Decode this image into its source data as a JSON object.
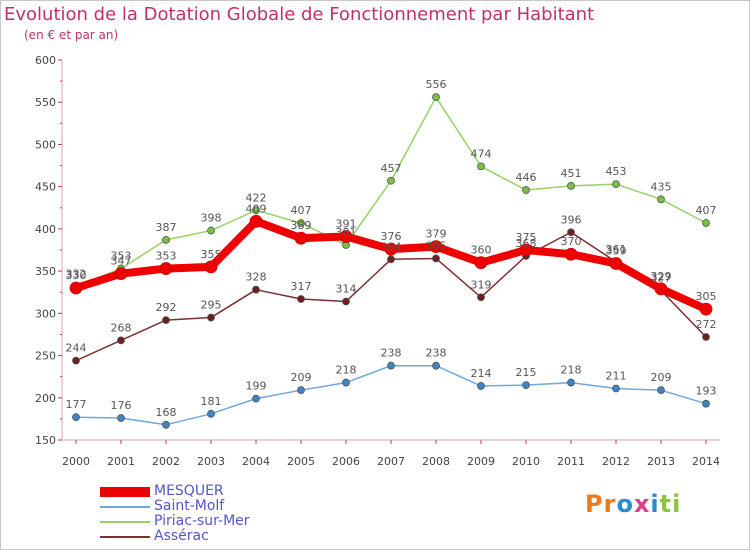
{
  "title": "Evolution de la Dotation Globale de Fonctionnement par Habitant",
  "subtitle": "(en € et par an)",
  "logo": {
    "letters": [
      "P",
      "r",
      "o",
      "x",
      "i",
      "t",
      "i"
    ],
    "colors": [
      "#f07a1a",
      "#f07a1a",
      "#2a8ad4",
      "#e03b8a",
      "#2a8ad4",
      "#8cc63f",
      "#8cc63f"
    ]
  },
  "chart_data": {
    "type": "line",
    "x": [
      "2000",
      "2001",
      "2002",
      "2003",
      "2004",
      "2005",
      "2006",
      "2007",
      "2008",
      "2009",
      "2010",
      "2011",
      "2012",
      "2013",
      "2014"
    ],
    "yticks": [
      "150",
      "200",
      "250",
      "300",
      "350",
      "400",
      "450",
      "500",
      "550",
      "600"
    ],
    "ylim": [
      150,
      600
    ],
    "grid": false,
    "legend_position": "bottom-left",
    "series": [
      {
        "name": "MESQUER",
        "color": "#ee0000",
        "marker_color": "#ee0000",
        "emphasis": true,
        "values": [
          330,
          347,
          353,
          355,
          409,
          389,
          391,
          376,
          379,
          360,
          375,
          370,
          359,
          329,
          305
        ],
        "labels": [
          "330",
          "347",
          "353",
          "355",
          "409",
          "389",
          "391",
          "376",
          "379",
          "360",
          "375",
          "370",
          "359",
          "329",
          "305"
        ]
      },
      {
        "name": "Saint-Molf",
        "color": "#6fa8dc",
        "marker_color": "#3d85c6",
        "values": [
          177,
          176,
          168,
          181,
          199,
          209,
          218,
          238,
          238,
          214,
          215,
          218,
          211,
          209,
          193
        ],
        "labels": [
          "177",
          "176",
          "168",
          "181",
          "199",
          "209",
          "218",
          "238",
          "238",
          "214",
          "215",
          "218",
          "211",
          "209",
          "193"
        ]
      },
      {
        "name": "Piriac-sur-Mer",
        "color": "#93d466",
        "marker_color": "#7ac143",
        "values": [
          332,
          353,
          387,
          398,
          422,
          407,
          381,
          457,
          556,
          474,
          446,
          451,
          453,
          435,
          407
        ],
        "labels": [
          "332",
          "353",
          "387",
          "398",
          "422",
          "407",
          "381",
          "457",
          "556",
          "474",
          "446",
          "451",
          "453",
          "435",
          "407"
        ]
      },
      {
        "name": "Assérac",
        "color": "#7d2e2e",
        "marker_color": "#6b1f1f",
        "values": [
          244,
          268,
          292,
          295,
          328,
          317,
          314,
          364,
          365,
          319,
          368,
          396,
          361,
          327,
          272
        ],
        "labels": [
          "244",
          "268",
          "292",
          "295",
          "328",
          "317",
          "314",
          "364",
          "365",
          "319",
          "368",
          "396",
          "361",
          "327",
          "272"
        ]
      }
    ]
  }
}
